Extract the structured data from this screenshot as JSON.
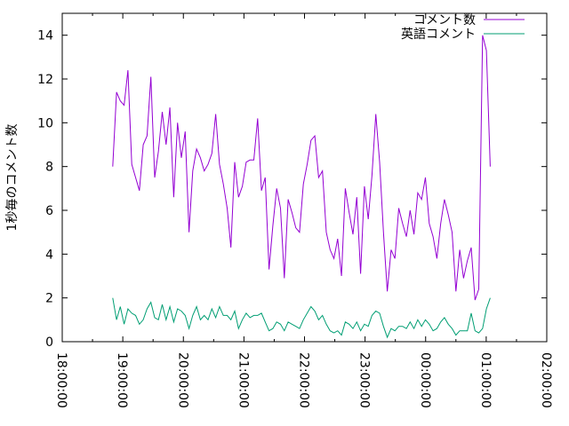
{
  "chart_data": {
    "type": "line",
    "xlabel": "",
    "ylabel": "1秒毎のコメント数",
    "ylim": [
      0,
      15
    ],
    "yticks": [
      0,
      2,
      4,
      6,
      8,
      10,
      12,
      14
    ],
    "x_ticks": [
      "18:00:00",
      "19:00:00",
      "20:00:00",
      "21:00:00",
      "22:00:00",
      "23:00:00",
      "00:00:00",
      "01:00:00",
      "02:00:00"
    ],
    "x_tick_rotation": "vertical",
    "grid": false,
    "legend": "top-right",
    "series": [
      {
        "name": "コメント数",
        "color": "#9400d3",
        "values": [
          8.0,
          11.4,
          11.0,
          10.8,
          12.4,
          8.1,
          7.5,
          6.9,
          9.0,
          9.4,
          12.1,
          7.5,
          8.7,
          10.5,
          9.0,
          10.7,
          6.6,
          10.0,
          8.4,
          9.6,
          5.0,
          7.8,
          8.8,
          8.4,
          7.8,
          8.1,
          8.6,
          10.4,
          8.1,
          7.2,
          6.1,
          4.3,
          8.2,
          6.6,
          7.1,
          8.2,
          8.3,
          8.3,
          10.2,
          6.9,
          7.5,
          3.3,
          5.3,
          7.0,
          6.1,
          2.9,
          6.5,
          5.9,
          5.2,
          5.0,
          7.2,
          8.1,
          9.2,
          9.4,
          7.5,
          7.8,
          5.0,
          4.2,
          3.8,
          4.7,
          3.0,
          7.0,
          5.9,
          4.9,
          6.6,
          3.1,
          7.1,
          5.6,
          7.6,
          10.4,
          8.2,
          5.0,
          2.3,
          4.2,
          3.8,
          6.1,
          5.4,
          4.8,
          6.0,
          4.9,
          6.8,
          6.5,
          7.5,
          5.4,
          4.8,
          3.8,
          5.4,
          6.5,
          5.8,
          5.0,
          2.3,
          4.2,
          2.9,
          3.7,
          4.3,
          1.9,
          2.4,
          14.0,
          13.3,
          8.0
        ]
      },
      {
        "name": "英語コメント",
        "color": "#009e73",
        "values": [
          2.0,
          1.0,
          1.6,
          0.8,
          1.5,
          1.3,
          1.2,
          0.8,
          1.0,
          1.5,
          1.8,
          1.1,
          1.0,
          1.7,
          1.0,
          1.6,
          0.9,
          1.5,
          1.4,
          1.2,
          0.6,
          1.2,
          1.6,
          1.0,
          1.2,
          1.0,
          1.5,
          1.1,
          1.6,
          1.2,
          1.2,
          1.0,
          1.4,
          0.6,
          1.0,
          1.3,
          1.1,
          1.2,
          1.2,
          1.3,
          0.9,
          0.5,
          0.6,
          0.9,
          0.8,
          0.5,
          0.9,
          0.8,
          0.7,
          0.6,
          1.0,
          1.3,
          1.6,
          1.4,
          1.0,
          1.2,
          0.8,
          0.5,
          0.4,
          0.5,
          0.3,
          0.9,
          0.8,
          0.6,
          0.9,
          0.5,
          0.8,
          0.7,
          1.2,
          1.4,
          1.3,
          0.7,
          0.2,
          0.6,
          0.5,
          0.7,
          0.7,
          0.6,
          0.9,
          0.6,
          1.0,
          0.7,
          1.0,
          0.8,
          0.5,
          0.6,
          0.9,
          1.1,
          0.8,
          0.6,
          0.3,
          0.5,
          0.5,
          0.5,
          1.3,
          0.5,
          0.4,
          0.6,
          1.5,
          2.0
        ]
      }
    ]
  }
}
